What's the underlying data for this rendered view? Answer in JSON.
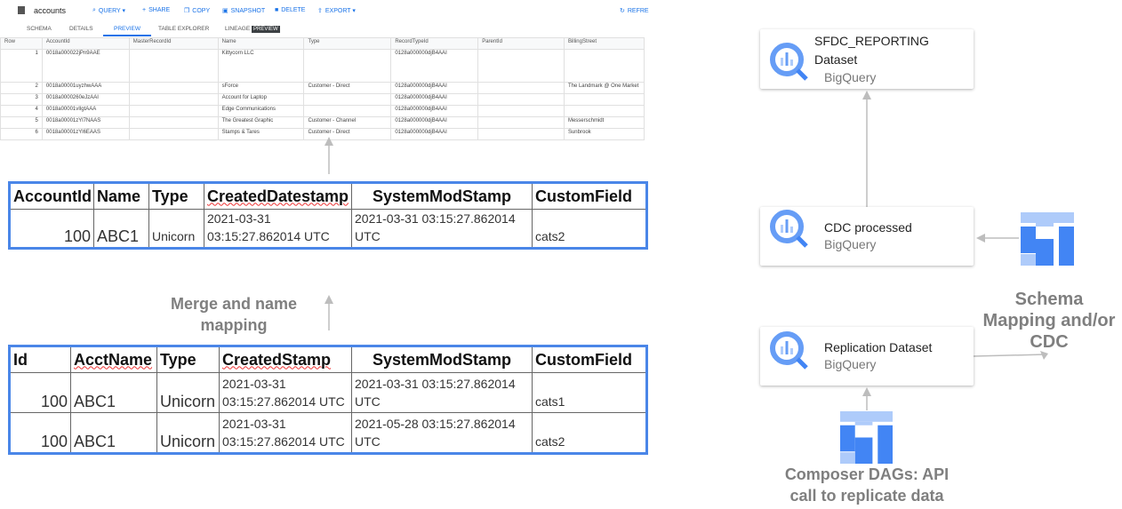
{
  "bq_preview": {
    "table_name": "accounts",
    "toolbar": [
      "QUERY ▾",
      "SHARE",
      "COPY",
      "SNAPSHOT",
      "DELETE",
      "EXPORT ▾",
      "REFRE"
    ],
    "tabs": [
      "SCHEMA",
      "DETAILS",
      "PREVIEW",
      "TABLE EXPLORER",
      "LINEAGE"
    ],
    "active_tab": "PREVIEW",
    "lineage_badge": "PREVIEW",
    "columns": [
      "Row",
      "AccountId",
      "MasterRecordId",
      "Name",
      "Type",
      "RecordTypeId",
      "ParentId",
      "BillingStreet"
    ],
    "rows": [
      [
        "1",
        "0018a000022jPn9AAE",
        "",
        "Kittycorn LLC",
        "",
        "0128a000000djB4AAI",
        "",
        ""
      ],
      [
        "2",
        "0018a00001uyzhwAAA",
        "",
        "sForce",
        "Customer - Direct",
        "0128a000000djB4AAI",
        "",
        "The Landmark @ One Market"
      ],
      [
        "3",
        "0018a0000260eJzAAI",
        "",
        "Account for Laptop",
        "",
        "0128a000000djB4AAI",
        "",
        ""
      ],
      [
        "4",
        "0018a00001vIlgtAAA",
        "",
        "Edge Communications",
        "",
        "0128a000000djB4AAI",
        "",
        ""
      ],
      [
        "5",
        "0018a00001zYl7NAAS",
        "",
        "The Greatest Graphic",
        "Customer - Channel",
        "0128a000000djB4AAI",
        "",
        "Messerschmidt"
      ],
      [
        "6",
        "0018a00001zYl6EAAS",
        "",
        "Stamps & Tares",
        "Customer - Direct",
        "0128a000000djB4AAI",
        "",
        "Sunbrook"
      ]
    ]
  },
  "target_table": {
    "headers": [
      "AccountId",
      "Name",
      "Type",
      "CreatedDatestamp",
      "SystemModStamp",
      "CustomField"
    ],
    "rows": [
      [
        "100",
        "ABC1",
        "Unicorn",
        "2021-03-31 03:15:27.862014 UTC",
        "2021-03-31 03:15:27.862014 UTC",
        "cats2"
      ]
    ]
  },
  "merge_label": "Merge and name mapping",
  "source_table": {
    "headers": [
      "Id",
      "AcctName",
      "Type",
      "CreatedStamp",
      "SystemModStamp",
      "CustomField"
    ],
    "rows": [
      [
        "100",
        "ABC1",
        "Unicorn",
        "2021-03-31 03:15:27.862014 UTC",
        "2021-03-31 03:15:27.862014 UTC",
        "cats1"
      ],
      [
        "100",
        "ABC1",
        "Unicorn",
        "2021-03-31 03:15:27.862014 UTC",
        "2021-05-28 03:15:27.862014 UTC",
        "cats2"
      ]
    ]
  },
  "diagram": {
    "nodes": [
      {
        "title": "SFDC_REPORTING",
        "title2": "Dataset",
        "service": "BigQuery"
      },
      {
        "title": "CDC processed",
        "service": "BigQuery"
      },
      {
        "title": "Replication Dataset",
        "service": "BigQuery"
      }
    ],
    "schema_label": "Schema Mapping and/or CDC",
    "composer_label": "Composer DAGs: API call to replicate data",
    "colors": {
      "bq_light": "#aecbfa",
      "bq_mid": "#669df6",
      "bq_dark": "#4285f4",
      "arrow": "#bdbdbd",
      "table_border": "#4a86e8"
    }
  }
}
